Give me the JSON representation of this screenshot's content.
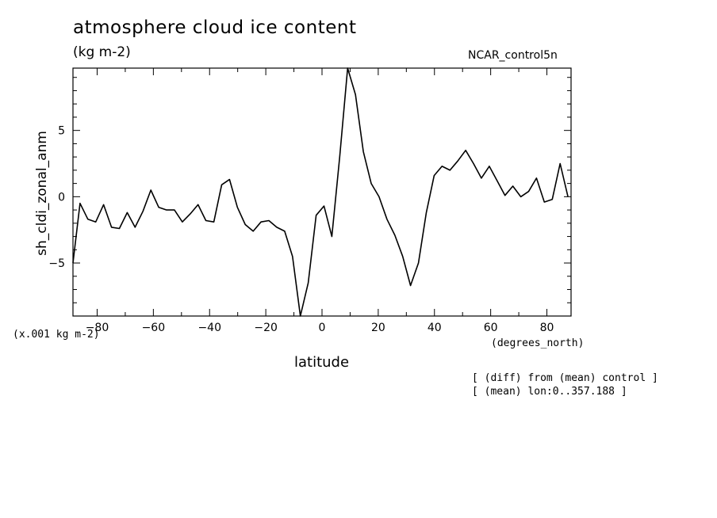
{
  "header": {
    "title": "atmosphere cloud ice content",
    "units": "(kg m-2)",
    "run": "NCAR_control5n"
  },
  "axes": {
    "scale_note": "(x.001 kg m-2)",
    "x_units": "(degrees_north)",
    "x_label": "latitude",
    "y_label": "sh_cldi_zonal_anm"
  },
  "notes": {
    "line1": "[ (diff) from (mean) control ]",
    "line2": "[ (mean) lon:0..357.188 ]"
  },
  "colors": {
    "line": "#000000",
    "background": "#ffffff"
  },
  "chart_data": {
    "type": "line",
    "title": "atmosphere cloud ice content",
    "xlabel": "latitude",
    "ylabel": "sh_cldi_zonal_anm",
    "xlim": [
      -88.6,
      88.6
    ],
    "ylim": [
      -9.0,
      9.7
    ],
    "x_ticks": [
      -80,
      -60,
      -40,
      -20,
      0,
      20,
      40,
      60,
      80
    ],
    "y_ticks": [
      -5,
      0,
      5
    ],
    "grid": false,
    "series": [
      {
        "x": [
          -88.6,
          -86.1,
          -83.3,
          -80.5,
          -77.7,
          -74.9,
          -72.1,
          -69.3,
          -66.5,
          -63.7,
          -60.9,
          -58.1,
          -55.3,
          -52.5,
          -49.7,
          -46.9,
          -44.1,
          -41.3,
          -38.5,
          -35.7,
          -32.9,
          -30.1,
          -27.3,
          -24.5,
          -21.7,
          -18.9,
          -16.1,
          -13.3,
          -10.5,
          -7.7,
          -4.9,
          -2.1,
          0.7,
          3.5,
          6.3,
          9.1,
          11.9,
          14.7,
          17.5,
          20.3,
          23.1,
          25.9,
          28.7,
          31.5,
          34.3,
          37.1,
          39.9,
          42.7,
          45.5,
          48.3,
          51.1,
          53.9,
          56.7,
          59.5,
          62.3,
          65.1,
          67.9,
          70.7,
          73.5,
          76.3,
          79.1,
          81.9,
          84.7,
          87.5
        ],
        "y": [
          -5.0,
          -0.5,
          -1.7,
          -1.9,
          -0.6,
          -2.3,
          -2.4,
          -1.2,
          -2.3,
          -1.1,
          0.5,
          -0.8,
          -1.0,
          -1.0,
          -1.9,
          -1.3,
          -0.6,
          -1.8,
          -1.9,
          0.9,
          1.3,
          -0.8,
          -2.1,
          -2.6,
          -1.9,
          -1.8,
          -2.3,
          -2.6,
          -4.5,
          -9.0,
          -6.5,
          -1.4,
          -0.7,
          -3.0,
          3.0,
          9.7,
          7.7,
          3.4,
          1.0,
          0.0,
          -1.7,
          -2.9,
          -4.5,
          -6.7,
          -5.0,
          -1.2,
          1.6,
          2.3,
          2.0,
          2.7,
          3.5,
          2.5,
          1.4,
          2.3,
          1.2,
          0.1,
          0.8,
          0.0,
          0.4,
          1.4,
          -0.4,
          -0.2,
          2.5,
          0.0
        ]
      }
    ]
  }
}
